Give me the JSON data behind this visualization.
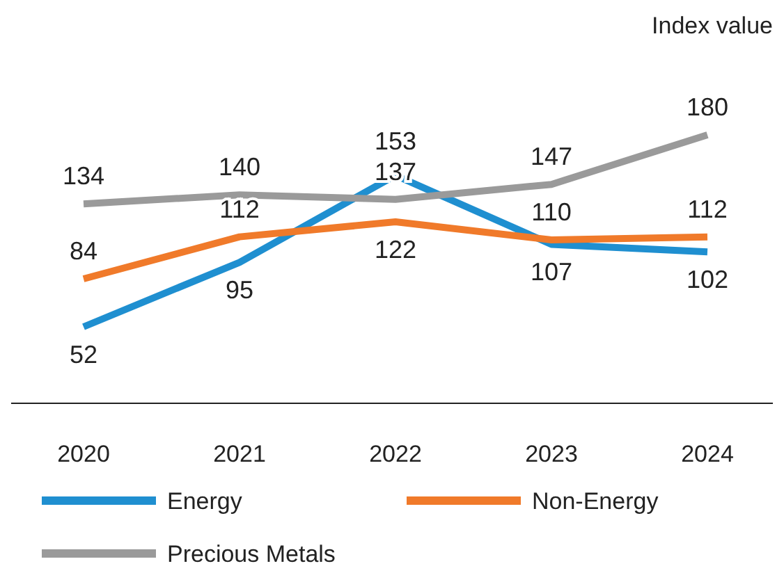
{
  "chart_data": {
    "type": "line",
    "ylabel": "Index value",
    "categories": [
      "2020",
      "2021",
      "2022",
      "2023",
      "2024"
    ],
    "series": [
      {
        "name": "Energy",
        "color": "#1f8fd0",
        "values": [
          52,
          95,
          153,
          107,
          102
        ]
      },
      {
        "name": "Non-Energy",
        "color": "#f07a2a",
        "values": [
          84,
          112,
          122,
          110,
          112
        ]
      },
      {
        "name": "Precious Metals",
        "color": "#9a9a9a",
        "values": [
          134,
          140,
          137,
          147,
          180
        ]
      }
    ],
    "tick_labels": "x",
    "data_labels": true,
    "legend": "bottom",
    "marker": "none",
    "line_style": "solid"
  }
}
